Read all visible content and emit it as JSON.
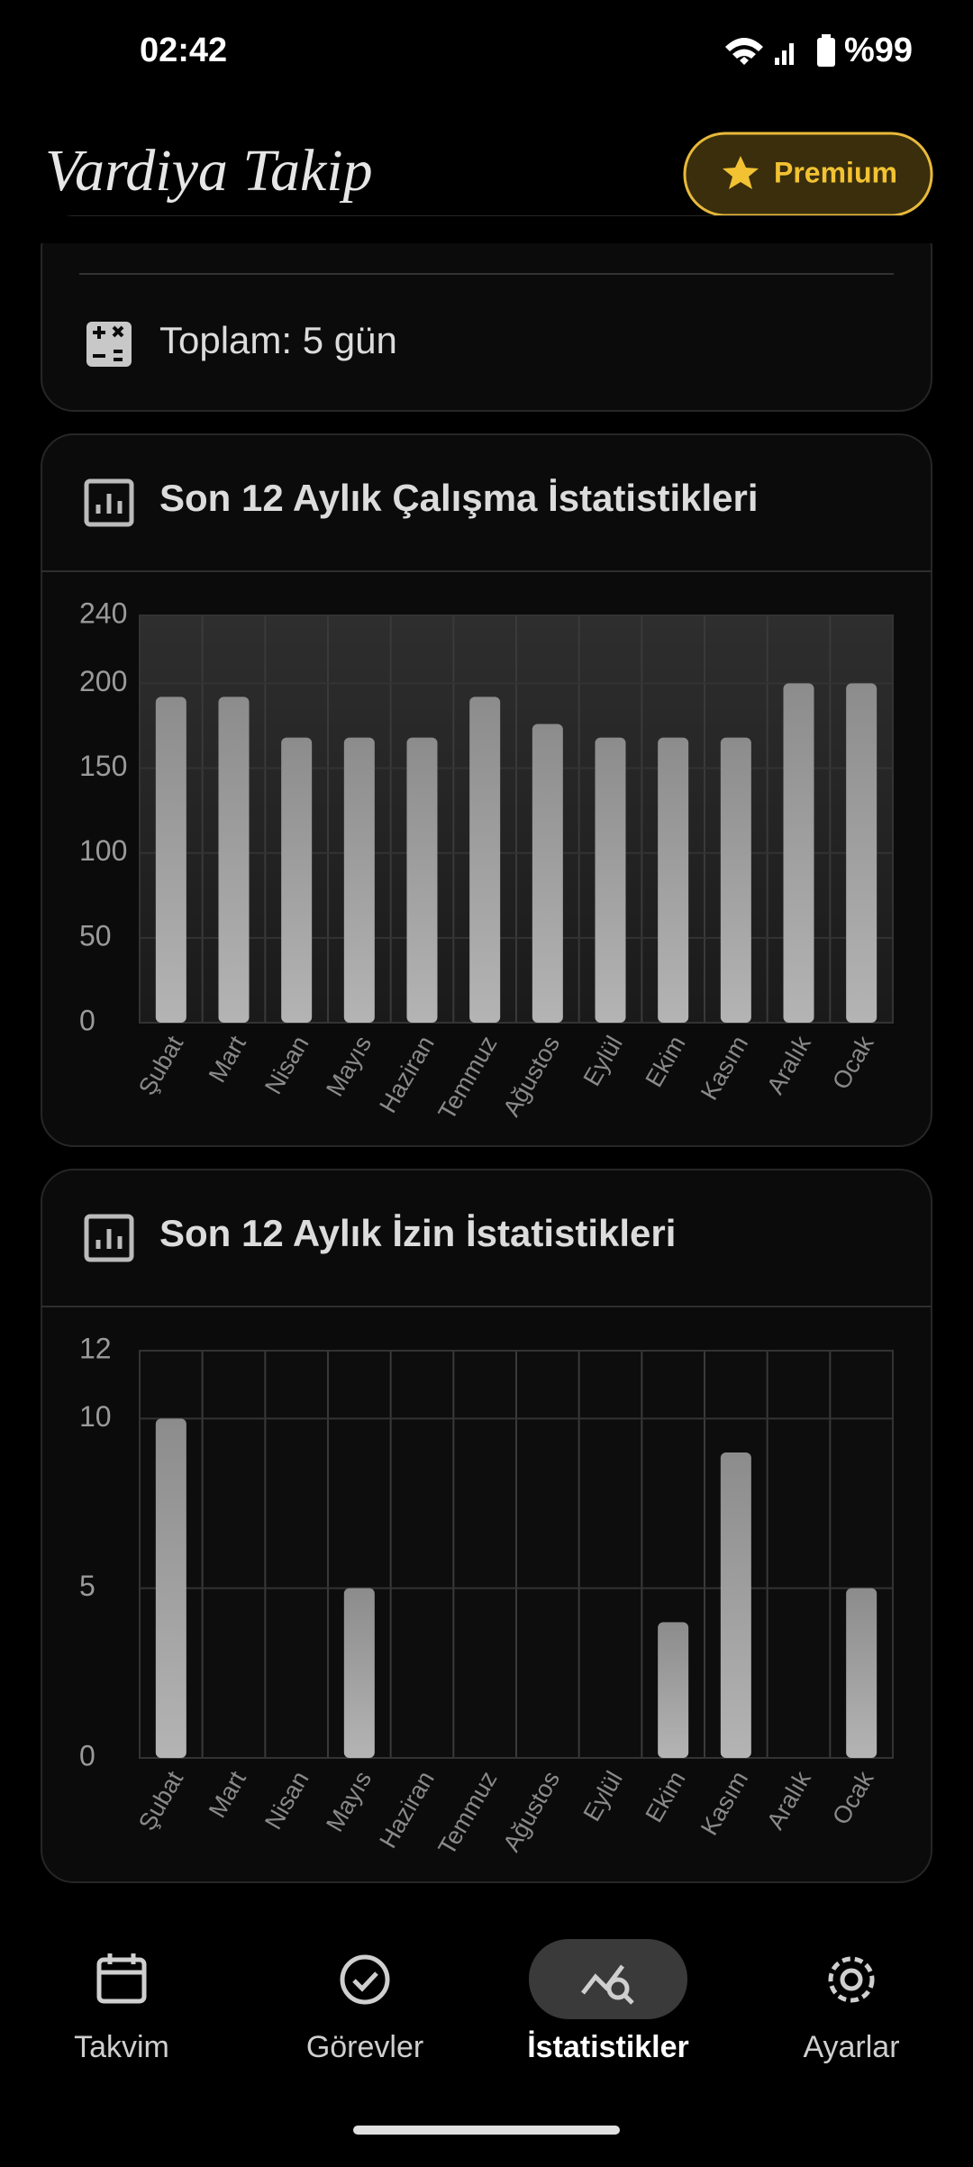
{
  "status_bar": {
    "time": "02:42",
    "battery": "%99"
  },
  "app_bar": {
    "title": "Vardiya Takip",
    "premium": "Premium"
  },
  "summary": {
    "total": "Toplam: 5 gün"
  },
  "chart_data": [
    {
      "type": "bar",
      "title": "Son 12 Aylık Çalışma İstatistikleri",
      "categories": [
        "Şubat",
        "Mart",
        "Nisan",
        "Mayıs",
        "Haziran",
        "Temmuz",
        "Ağustos",
        "Eylül",
        "Ekim",
        "Kasım",
        "Aralık",
        "Ocak"
      ],
      "values": [
        192,
        192,
        168,
        168,
        168,
        192,
        176,
        168,
        168,
        168,
        200,
        200
      ],
      "color": "#a0a0a0",
      "ylim": [
        0,
        240
      ],
      "yticks": [
        0,
        50,
        100,
        150,
        200,
        240
      ],
      "grid": true
    },
    {
      "type": "bar",
      "title": "Son 12 Aylık İzin İstatistikleri",
      "categories": [
        "Şubat",
        "Mart",
        "Nisan",
        "Mayıs",
        "Haziran",
        "Temmuz",
        "Ağustos",
        "Eylül",
        "Ekim",
        "Kasım",
        "Aralık",
        "Ocak"
      ],
      "values": [
        10,
        0,
        0,
        5,
        0,
        0,
        0,
        0,
        4,
        9,
        0,
        5
      ],
      "color": "#a0a0a0",
      "ylim": [
        0,
        12
      ],
      "yticks": [
        0,
        5,
        10,
        12
      ],
      "grid": true
    }
  ],
  "nav": {
    "items": [
      "Takvim",
      "Görevler",
      "İstatistikler",
      "Ayarlar"
    ]
  }
}
